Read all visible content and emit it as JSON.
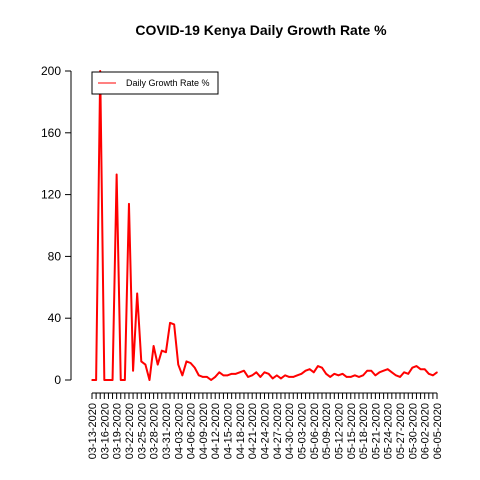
{
  "chart_data": {
    "type": "line",
    "title": "COVID-19 Kenya Daily Growth Rate %",
    "xlabel": "",
    "ylabel": "",
    "ylim": [
      0,
      200
    ],
    "yticks": [
      0,
      40,
      80,
      120,
      160,
      200
    ],
    "xlim": [
      "2020-03-13",
      "2020-06-05"
    ],
    "xtick_labels": [
      "03-13-2020",
      "03-16-2020",
      "03-19-2020",
      "03-22-2020",
      "03-25-2020",
      "03-28-2020",
      "03-31-2020",
      "04-03-2020",
      "04-06-2020",
      "04-09-2020",
      "04-12-2020",
      "04-15-2020",
      "04-18-2020",
      "04-21-2020",
      "04-24-2020",
      "04-27-2020",
      "04-30-2020",
      "05-03-2020",
      "05-06-2020",
      "05-09-2020",
      "05-12-2020",
      "05-15-2020",
      "05-18-2020",
      "05-21-2020",
      "05-24-2020",
      "05-27-2020",
      "05-30-2020",
      "06-02-2020",
      "06-05-2020"
    ],
    "legend_position": "top-left",
    "grid": false,
    "series": [
      {
        "name": "Daily Growth Rate %",
        "color": "#ff0000",
        "x": [
          "2020-03-13",
          "2020-03-14",
          "2020-03-15",
          "2020-03-16",
          "2020-03-17",
          "2020-03-18",
          "2020-03-19",
          "2020-03-20",
          "2020-03-21",
          "2020-03-22",
          "2020-03-23",
          "2020-03-24",
          "2020-03-25",
          "2020-03-26",
          "2020-03-27",
          "2020-03-28",
          "2020-03-29",
          "2020-03-30",
          "2020-03-31",
          "2020-04-01",
          "2020-04-02",
          "2020-04-03",
          "2020-04-04",
          "2020-04-05",
          "2020-04-06",
          "2020-04-07",
          "2020-04-08",
          "2020-04-09",
          "2020-04-10",
          "2020-04-11",
          "2020-04-12",
          "2020-04-13",
          "2020-04-14",
          "2020-04-15",
          "2020-04-16",
          "2020-04-17",
          "2020-04-18",
          "2020-04-19",
          "2020-04-20",
          "2020-04-21",
          "2020-04-22",
          "2020-04-23",
          "2020-04-24",
          "2020-04-25",
          "2020-04-26",
          "2020-04-27",
          "2020-04-28",
          "2020-04-29",
          "2020-04-30",
          "2020-05-01",
          "2020-05-02",
          "2020-05-03",
          "2020-05-04",
          "2020-05-05",
          "2020-05-06",
          "2020-05-07",
          "2020-05-08",
          "2020-05-09",
          "2020-05-10",
          "2020-05-11",
          "2020-05-12",
          "2020-05-13",
          "2020-05-14",
          "2020-05-15",
          "2020-05-16",
          "2020-05-17",
          "2020-05-18",
          "2020-05-19",
          "2020-05-20",
          "2020-05-21",
          "2020-05-22",
          "2020-05-23",
          "2020-05-24",
          "2020-05-25",
          "2020-05-26",
          "2020-05-27",
          "2020-05-28",
          "2020-05-29",
          "2020-05-30",
          "2020-05-31",
          "2020-06-01",
          "2020-06-02",
          "2020-06-03",
          "2020-06-04",
          "2020-06-05"
        ],
        "y": [
          0,
          0,
          200,
          0,
          0,
          0,
          133,
          0,
          0,
          114,
          6,
          56,
          12,
          10,
          0,
          22,
          10,
          19,
          18,
          37,
          36,
          10,
          3,
          12,
          11,
          8,
          3,
          2,
          2,
          0,
          2,
          5,
          3,
          3,
          4,
          4,
          5,
          6,
          2,
          3,
          5,
          2,
          5,
          4,
          1,
          3,
          1,
          3,
          2,
          2,
          3,
          4,
          6,
          7,
          5,
          9,
          8,
          4,
          2,
          4,
          3,
          4,
          2,
          2,
          3,
          2,
          3,
          6,
          6,
          3,
          5,
          6,
          7,
          5,
          3,
          2,
          5,
          4,
          8,
          9,
          7,
          7,
          4,
          3,
          5
        ]
      }
    ]
  }
}
